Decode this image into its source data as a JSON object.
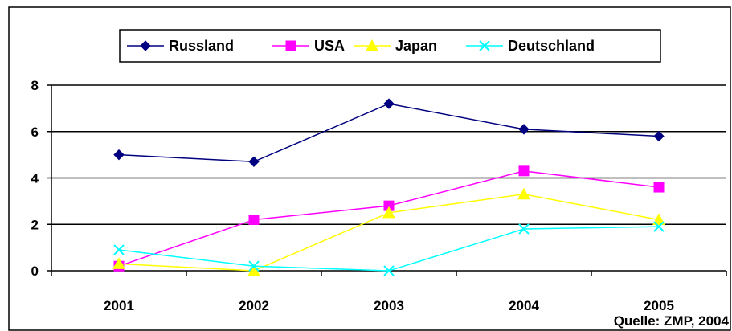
{
  "chart_data": {
    "type": "line",
    "title": "",
    "xlabel": "",
    "ylabel": "",
    "categories": [
      "2001",
      "2002",
      "2003",
      "2004",
      "2005"
    ],
    "ylim": [
      0,
      8
    ],
    "yticks": [
      0,
      2,
      4,
      6,
      8
    ],
    "grid": true,
    "legend_position": "top",
    "series": [
      {
        "name": "Russland",
        "values": [
          5.0,
          4.7,
          7.2,
          6.1,
          5.8
        ],
        "color": "#000080",
        "marker": "diamond"
      },
      {
        "name": "USA",
        "values": [
          0.2,
          2.2,
          2.8,
          4.3,
          3.6
        ],
        "color": "#ff00ff",
        "marker": "square"
      },
      {
        "name": "Japan",
        "values": [
          0.3,
          0.0,
          2.5,
          3.3,
          2.2
        ],
        "color": "#ffff00",
        "marker": "triangle"
      },
      {
        "name": "Deutschland",
        "values": [
          0.9,
          0.2,
          0.0,
          1.8,
          1.9
        ],
        "color": "#00ffff",
        "marker": "x"
      }
    ],
    "source_note": "Quelle: ZMP, 2004"
  }
}
